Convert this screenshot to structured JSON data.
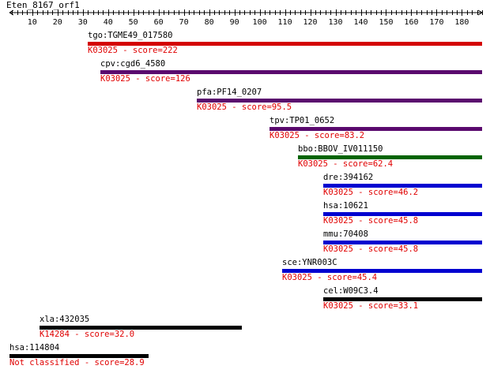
{
  "title": "Eten_8167_orf1",
  "ruler": {
    "min": 1,
    "max": 188,
    "ticks": [
      10,
      20,
      30,
      40,
      50,
      60,
      70,
      80,
      90,
      100,
      110,
      120,
      130,
      140,
      150,
      160,
      170,
      180
    ]
  },
  "hits": [
    {
      "name": "tgo:TGME49_017580",
      "ko": "K03025",
      "label": "K03025 - score=222",
      "start": 32,
      "end": 188,
      "color": "#d40000"
    },
    {
      "name": "cpv:cgd6_4580",
      "ko": "K03025",
      "label": "K03025 - score=126",
      "start": 37,
      "end": 188,
      "color": "#5a0a6e"
    },
    {
      "name": "pfa:PF14_0207",
      "ko": "K03025",
      "label": "K03025 - score=95.5",
      "start": 75,
      "end": 188,
      "color": "#5a0a6e"
    },
    {
      "name": "tpv:TP01_0652",
      "ko": "K03025",
      "label": "K03025 - score=83.2",
      "start": 104,
      "end": 188,
      "color": "#5a0a6e"
    },
    {
      "name": "bbo:BBOV_IV011150",
      "ko": "K03025",
      "label": "K03025 - score=62.4",
      "start": 115,
      "end": 188,
      "color": "#006400"
    },
    {
      "name": "dre:394162",
      "ko": "K03025",
      "label": "K03025 - score=46.2",
      "start": 125,
      "end": 188,
      "color": "#0000d0"
    },
    {
      "name": "hsa:10621",
      "ko": "K03025",
      "label": "K03025 - score=45.8",
      "start": 125,
      "end": 188,
      "color": "#0000d0"
    },
    {
      "name": "mmu:70408",
      "ko": "K03025",
      "label": "K03025 - score=45.8",
      "start": 125,
      "end": 188,
      "color": "#0000d0"
    },
    {
      "name": "sce:YNR003C",
      "ko": "K03025",
      "label": "K03025 - score=45.4",
      "start": 109,
      "end": 188,
      "color": "#0000d0"
    },
    {
      "name": "cel:W09C3.4",
      "ko": "K03025",
      "label": "K03025 - score=33.1",
      "start": 125,
      "end": 188,
      "color": "#000000"
    },
    {
      "name": "xla:432035",
      "ko": "K14284",
      "label": "K14284 - score=32.0",
      "start": 13,
      "end": 93,
      "color": "#000000"
    },
    {
      "name": "hsa:114804",
      "ko": "",
      "label": "Not classified - score=28.9",
      "start": 1,
      "end": 56,
      "color": "#000000"
    }
  ]
}
